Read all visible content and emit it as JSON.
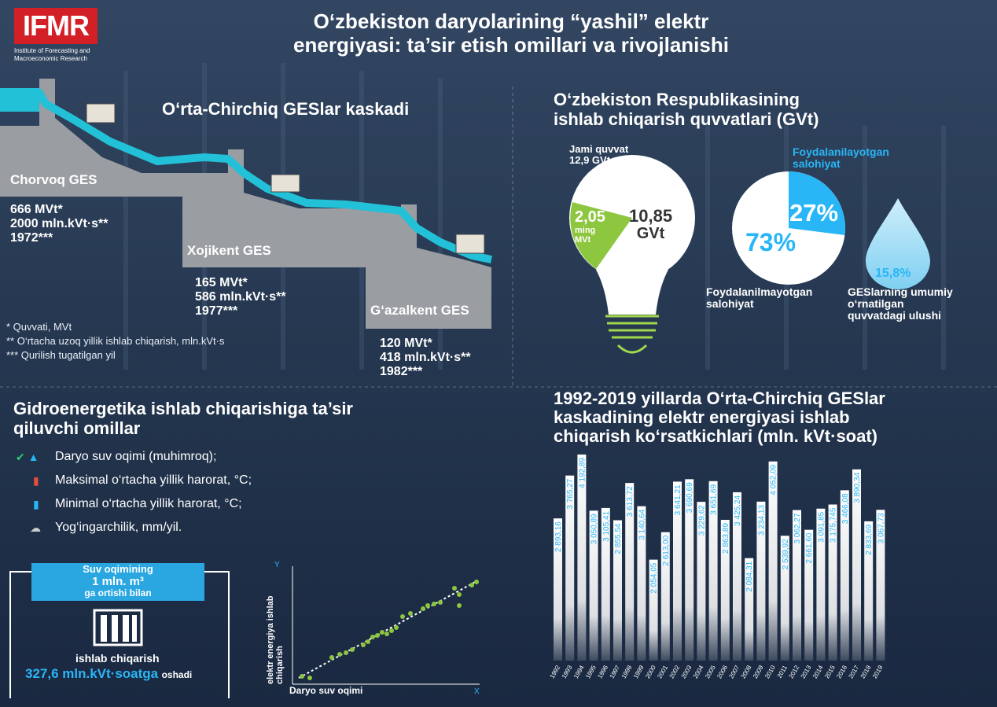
{
  "logo": {
    "text": "IFMR",
    "subtitle": "Institute of Forecasting and Macroeconomic Research"
  },
  "title_line1": "O‘zbekiston daryolarining “yashil” elektr",
  "title_line2": "energiyasi: ta’sir etish omillari va rivojlanishi",
  "cascade": {
    "title": "O‘rta-Chirchiq GESlar kaskadi",
    "stations": [
      {
        "name": "Chorvoq GES",
        "power": "666 MVt*",
        "output": "2000 mln.kVt·s**",
        "year": "1972***"
      },
      {
        "name": "Xojikent GES",
        "power": "165 MVt*",
        "output": "586 mln.kVt·s**",
        "year": "1977***"
      },
      {
        "name": "G‘azalkent GES",
        "power": "120 MVt*",
        "output": "418 mln.kVt·s**",
        "year": "1982***"
      }
    ],
    "notes": [
      "* Quvvati, MVt",
      "** O‘rtacha uzoq yillik ishlab chiqarish, mln.kVt·s",
      "*** Qurilish tugatilgan yil"
    ]
  },
  "capacity": {
    "title_line1": "O‘zbekiston Respublikasining",
    "title_line2": "ishlab chiqarish quvvatlari (GVt)",
    "total_label": "Jami quvvat",
    "total_value": "12,9 GVt",
    "green_value": "2,05",
    "green_unit1": "ming",
    "green_unit2": "MVt",
    "other_value": "10,85",
    "other_unit": "GVt",
    "used_label_line1": "Foydalanilayotgan",
    "used_label_line2": "salohiyat",
    "used_pct": "27%",
    "unused_pct": "73%",
    "unused_label_line1": "Foydalanilmayotgan",
    "unused_label_line2": "salohiyat",
    "drop_pct": "15,8%",
    "drop_label_line1": "GESlarning umumiy",
    "drop_label_line2": "o‘rnatilgan",
    "drop_label_line3": "quvvatdagi ulushi",
    "colors": {
      "accent": "#29b6f6",
      "green": "#8dc63f"
    }
  },
  "factors": {
    "title_line1": "Gidroenergetika ishlab chiqarishiga ta’sir",
    "title_line2": "qiluvchi omillar",
    "items": [
      {
        "icon": "water-flow-icon",
        "text": "Daryo suv oqimi (muhimroq);"
      },
      {
        "icon": "thermometer-hot-icon",
        "text": "Maksimal o‘rtacha yillik harorat, °C;"
      },
      {
        "icon": "thermometer-cold-icon",
        "text": "Minimal o‘rtacha yillik harorat, °C;"
      },
      {
        "icon": "rain-cloud-icon",
        "text": "Yog‘ingarchilik, mm/yil."
      }
    ]
  },
  "water": {
    "line1": "Suv oqimining",
    "line2": "1 mln. m³",
    "line3": "ga ortishi bilan",
    "line4": "ishlab chiqarish",
    "value": "327,6 mln.kVt·soatga",
    "suffix": "oshadi"
  },
  "scatter": {
    "ylabel_line1": "elektr energiya ishlab",
    "ylabel_line2": "chiqarish",
    "xlabel": "Daryo suv oqimi",
    "y_letter": "Y",
    "x_letter": "X"
  },
  "chart_data": {
    "type": "bar",
    "title_line1": "1992-2019 yillarda O‘rta-Chirchiq GESlar",
    "title_line2": "kaskadining elektr energiyasi ishlab",
    "title_line3": "chiqarish ko‘rsatkichlari (mln. kVt·soat)",
    "categories": [
      "1992",
      "1993",
      "1994",
      "1995",
      "1996",
      "1997",
      "1998",
      "1999",
      "2000",
      "2001",
      "2002",
      "2003",
      "2004",
      "2005",
      "2006",
      "2007",
      "2008",
      "2009",
      "2010",
      "2011",
      "2012",
      "2013",
      "2014",
      "2015",
      "2016",
      "2017",
      "2018",
      "2019"
    ],
    "values": [
      2893.16,
      3765.27,
      4192.89,
      3050.89,
      3105.41,
      2855.54,
      3613.72,
      3140.64,
      2054.05,
      2613.0,
      3641.21,
      3690.69,
      3229.62,
      3651.69,
      2863.89,
      3425.24,
      2084.31,
      3234.13,
      4052.09,
      2539.92,
      3062.27,
      2661.6,
      3091.85,
      3175.745,
      3466.08,
      3890.34,
      2833.69,
      3067.73
    ],
    "labels": [
      "2 893,16",
      "3 765,27",
      "4 192,89",
      "3 050,89",
      "3 105,41",
      "2 855,54",
      "3 613,72",
      "3 140,64",
      "2 054,05",
      "2 613,00",
      "3 641,21",
      "3 690,69",
      "3 229,62",
      "3 651,69",
      "2 863,89",
      "3 425,24",
      "2 084,31",
      "3 234,13",
      "4 052,09",
      "2 539,92",
      "3 062,27",
      "2 661,60",
      "3 091,85",
      "3 175,745",
      "3 466,08",
      "3 890,34",
      "2 833,69",
      "3 067,73"
    ],
    "ylim": [
      0,
      4400
    ],
    "grid": false,
    "bar_color": "#ffffff",
    "label_color": "#29b6f6"
  }
}
